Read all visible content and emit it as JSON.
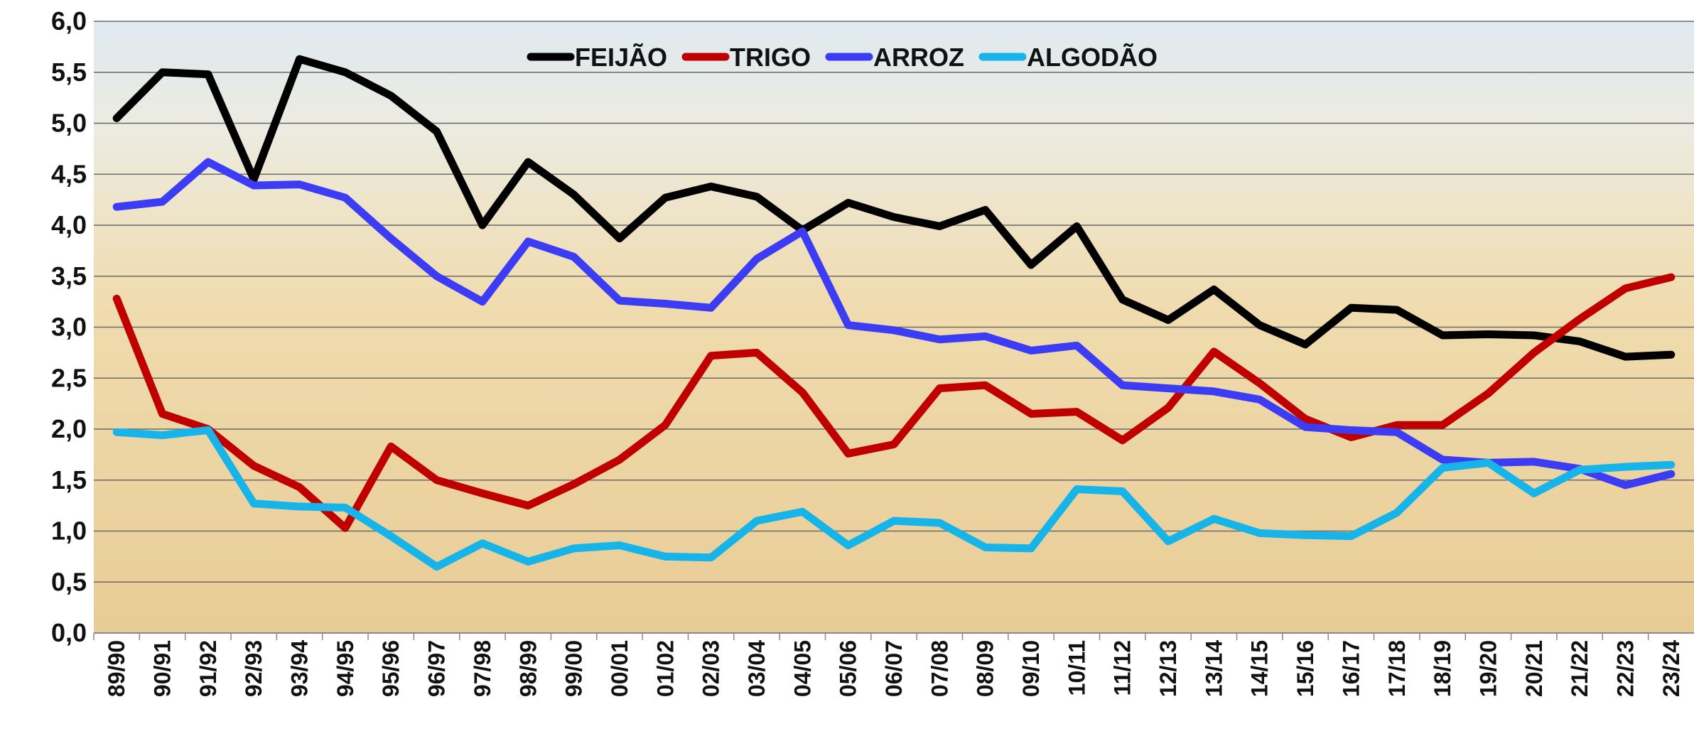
{
  "chart_data": {
    "type": "line",
    "categories": [
      "89/90",
      "90/91",
      "91/92",
      "92/93",
      "93/94",
      "94/95",
      "95/96",
      "96/97",
      "97/98",
      "98/99",
      "99/00",
      "00/01",
      "01/02",
      "02/03",
      "03/04",
      "04/05",
      "05/06",
      "06/07",
      "07/08",
      "08/09",
      "09/10",
      "10/11",
      "11/12",
      "12/13",
      "13/14",
      "14/15",
      "15/16",
      "16/17",
      "17/18",
      "18/19",
      "19/20",
      "20/21",
      "21/22",
      "22/23",
      "23/24"
    ],
    "series": [
      {
        "name": "FEIJÃO",
        "color": "#000000",
        "values": [
          5.05,
          5.5,
          5.48,
          4.45,
          5.63,
          5.5,
          5.27,
          4.92,
          4.0,
          4.62,
          4.3,
          3.87,
          4.27,
          4.38,
          4.28,
          3.95,
          4.22,
          4.08,
          3.99,
          4.15,
          3.61,
          3.99,
          3.27,
          3.07,
          3.37,
          3.02,
          2.83,
          3.19,
          3.17,
          2.92,
          2.93,
          2.92,
          2.86,
          2.71,
          2.73
        ]
      },
      {
        "name": "TRIGO",
        "color": "#c00000",
        "values": [
          3.28,
          2.15,
          2.0,
          1.64,
          1.43,
          1.03,
          1.83,
          1.5,
          1.37,
          1.25,
          1.46,
          1.7,
          2.04,
          2.72,
          2.75,
          2.36,
          1.76,
          1.85,
          2.4,
          2.43,
          2.15,
          2.17,
          1.89,
          2.21,
          2.76,
          2.45,
          2.1,
          1.92,
          2.04,
          2.04,
          2.35,
          2.75,
          3.08,
          3.38,
          3.49
        ]
      },
      {
        "name": "ARROZ",
        "color": "#3c3cf5",
        "values": [
          4.18,
          4.23,
          4.62,
          4.39,
          4.4,
          4.27,
          3.87,
          3.5,
          3.25,
          3.84,
          3.69,
          3.26,
          3.23,
          3.19,
          3.67,
          3.94,
          3.02,
          2.97,
          2.88,
          2.91,
          2.77,
          2.82,
          2.43,
          2.4,
          2.37,
          2.29,
          2.02,
          1.99,
          1.97,
          1.7,
          1.67,
          1.68,
          1.61,
          1.45,
          1.56
        ]
      },
      {
        "name": "ALGODÃO",
        "color": "#16b4e8",
        "values": [
          1.97,
          1.94,
          1.99,
          1.27,
          1.24,
          1.23,
          0.95,
          0.65,
          0.88,
          0.7,
          0.83,
          0.86,
          0.75,
          0.74,
          1.1,
          1.19,
          0.86,
          1.1,
          1.08,
          0.84,
          0.83,
          1.41,
          1.39,
          0.9,
          1.12,
          0.98,
          0.96,
          0.95,
          1.18,
          1.62,
          1.67,
          1.37,
          1.6,
          1.63,
          1.65
        ]
      }
    ],
    "ylim": [
      0,
      6
    ],
    "yticks": [
      {
        "value": 0,
        "label": "0,0"
      },
      {
        "value": 0.5,
        "label": "0,5"
      },
      {
        "value": 1,
        "label": "1,0"
      },
      {
        "value": 1.5,
        "label": "1,5"
      },
      {
        "value": 2,
        "label": "2,0"
      },
      {
        "value": 2.5,
        "label": "2,5"
      },
      {
        "value": 3,
        "label": "3,0"
      },
      {
        "value": 3.5,
        "label": "3,5"
      },
      {
        "value": 4,
        "label": "4,0"
      },
      {
        "value": 4.5,
        "label": "4,5"
      },
      {
        "value": 5,
        "label": "5,0"
      },
      {
        "value": 5.5,
        "label": "5,5"
      },
      {
        "value": 6,
        "label": "6,0"
      }
    ],
    "grid": true,
    "legend": "top"
  }
}
